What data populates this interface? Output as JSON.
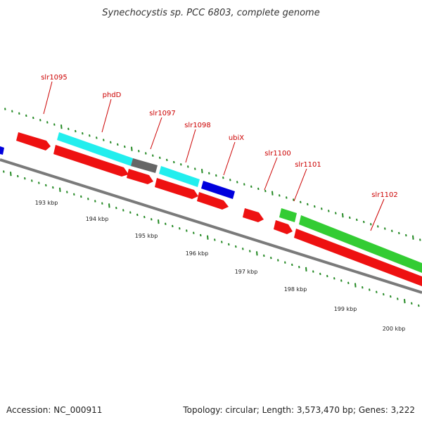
{
  "title": "Synechocystis sp. PCC 6803, complete genome",
  "footer": {
    "accession": "Accession: NC_000911",
    "summary": "Topology: circular; Length: 3,573,470 bp; Genes: 3,222"
  },
  "colors": {
    "cds_red": "#ee1111",
    "cyan": "#22eeee",
    "blue": "#0000dd",
    "green": "#33cc33",
    "gray": "#666666",
    "backbone": "#7a7a7a",
    "tick_green": "#228822",
    "label_red": "#cc0000"
  },
  "gene_labels": [
    "slr1095",
    "phdD",
    "slr1097",
    "slr1098",
    "ubiX",
    "slr1100",
    "slr1101",
    "slr1102"
  ],
  "scale_labels": [
    "193 kbp",
    "194 kbp",
    "195 kbp",
    "196 kbp",
    "197 kbp",
    "198 kbp",
    "199 kbp",
    "200 kbp"
  ]
}
